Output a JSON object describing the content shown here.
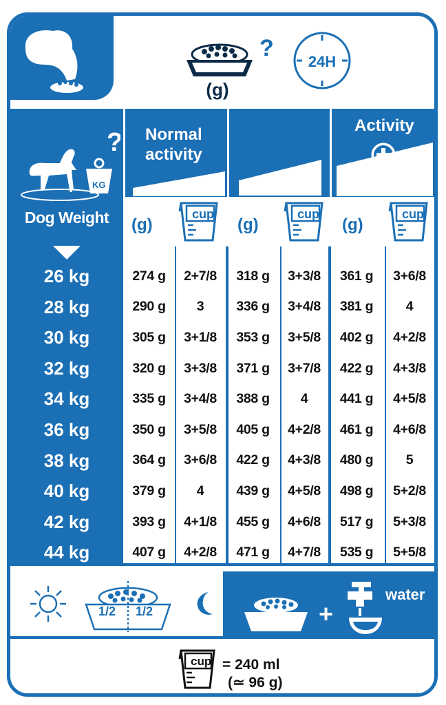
{
  "header": {
    "unit_g": "(g)",
    "clock_label": "24H"
  },
  "columns": {
    "normal_activity": "Normal activity",
    "activity": "Activity",
    "dog_weight": "Dog Weight",
    "g_label": "(g)",
    "cup_label": "cup"
  },
  "table": {
    "rows": [
      {
        "weight": "26 kg",
        "cells": [
          "274 g",
          "2+7/8",
          "318 g",
          "3+3/8",
          "361 g",
          "3+6/8"
        ]
      },
      {
        "weight": "28 kg",
        "cells": [
          "290 g",
          "3",
          "336 g",
          "3+4/8",
          "381 g",
          "4"
        ]
      },
      {
        "weight": "30 kg",
        "cells": [
          "305 g",
          "3+1/8",
          "353 g",
          "3+5/8",
          "402 g",
          "4+2/8"
        ]
      },
      {
        "weight": "32 kg",
        "cells": [
          "320 g",
          "3+3/8",
          "371 g",
          "3+7/8",
          "422 g",
          "4+3/8"
        ]
      },
      {
        "weight": "34 kg",
        "cells": [
          "335 g",
          "3+4/8",
          "388 g",
          "4",
          "441 g",
          "4+5/8"
        ]
      },
      {
        "weight": "36 kg",
        "cells": [
          "350 g",
          "3+5/8",
          "405 g",
          "4+2/8",
          "461 g",
          "4+6/8"
        ]
      },
      {
        "weight": "38 kg",
        "cells": [
          "364 g",
          "3+6/8",
          "422 g",
          "4+3/8",
          "480 g",
          "5"
        ]
      },
      {
        "weight": "40 kg",
        "cells": [
          "379 g",
          "4",
          "439 g",
          "4+5/8",
          "498 g",
          "5+2/8"
        ]
      },
      {
        "weight": "42 kg",
        "cells": [
          "393 g",
          "4+1/8",
          "455 g",
          "4+6/8",
          "517 g",
          "5+3/8"
        ]
      },
      {
        "weight": "44 kg",
        "cells": [
          "407 g",
          "4+2/8",
          "471 g",
          "4+7/8",
          "535 g",
          "5+5/8"
        ]
      }
    ]
  },
  "bottom": {
    "half": "1/2",
    "water": "water",
    "cup_label": "cup",
    "cup_equals": "= 240 ml",
    "cup_approx": "(≃ 96 g)"
  },
  "colors": {
    "brand_blue": "#1b6fb5",
    "dark_text": "#0b2a47"
  },
  "icons": [
    "dog-head-icon",
    "food-bowl-icon",
    "question-mark-icon",
    "clock-24h-icon",
    "dog-scale-icon",
    "plus-circle-icon",
    "measuring-cup-icon",
    "sun-icon",
    "moon-icon",
    "water-tap-icon"
  ]
}
